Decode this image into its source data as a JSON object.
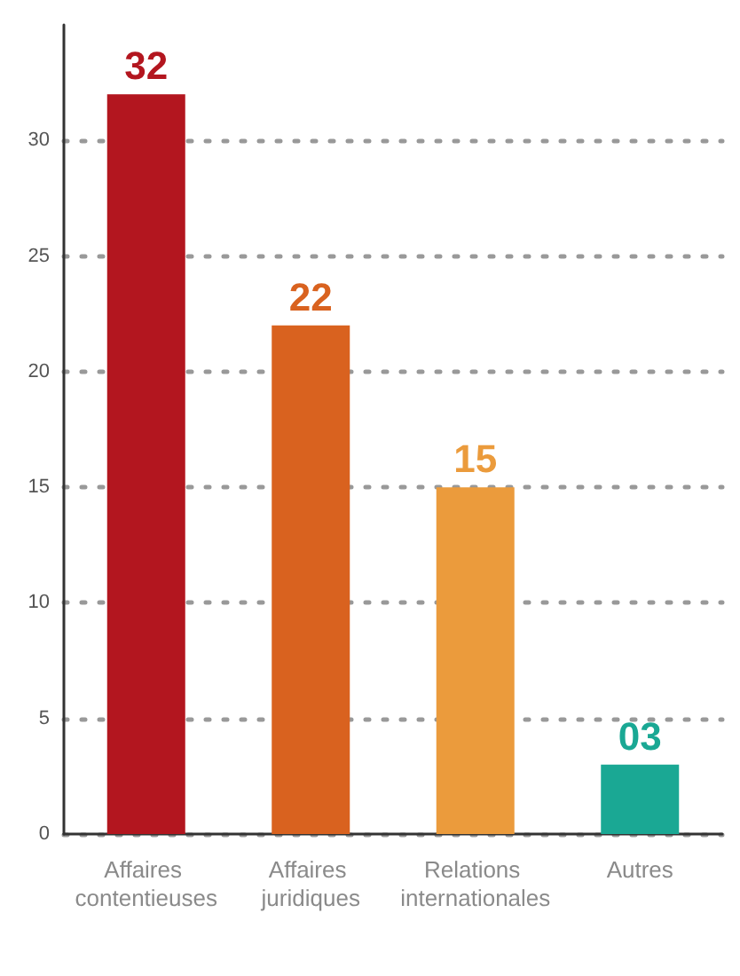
{
  "chart_data": {
    "type": "bar",
    "categories": [
      "Affaires contentieuses",
      "Affaires juridiques",
      "Relations internationales",
      "Autres"
    ],
    "values": [
      32,
      22,
      15,
      3
    ],
    "value_labels": [
      "32",
      "22",
      "15",
      "03"
    ],
    "colors": [
      "#b3161f",
      "#d9621f",
      "#eb9b3c",
      "#1aa894"
    ],
    "ylim": [
      0,
      35
    ],
    "yticks": [
      0,
      5,
      10,
      15,
      20,
      25,
      30
    ],
    "grid": "y"
  }
}
